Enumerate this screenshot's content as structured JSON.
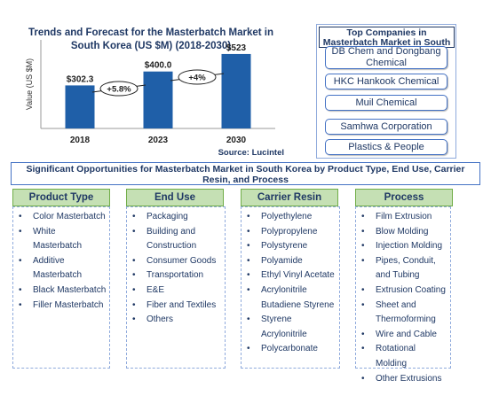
{
  "chart_data": {
    "type": "bar",
    "title": "Trends and Forecast for the Masterbatch Market in South Korea (US $M) (2018-2030)",
    "ylabel": "Value (US $M)",
    "xlabel": "",
    "categories": [
      "2018",
      "2023",
      "2030"
    ],
    "values": [
      302.3,
      400.0,
      523
    ],
    "value_labels": [
      "$302.3",
      "$400.0",
      "$523"
    ],
    "ylim": [
      0,
      560
    ],
    "growth_labels": [
      "+5.8%",
      "+4%"
    ],
    "source": "Source: Lucintel",
    "grid": false,
    "bar_color": "#1f5fa8"
  },
  "companies": {
    "title": "Top Companies in Masterbatch Market in South Korea",
    "items": [
      {
        "label": "DB Chem and Dongbang Chemical"
      },
      {
        "label": "HKC Hankook Chemical"
      },
      {
        "label": "Muil Chemical"
      },
      {
        "label": "Samhwa Corporation"
      },
      {
        "label": "Plastics & People"
      }
    ]
  },
  "opportunities": {
    "title": "Significant Opportunities for Masterbatch Market in South Korea by Product Type, End Use, Carrier Resin, and Process",
    "columns": [
      {
        "title": "Product Type",
        "items": [
          "Color Masterbatch",
          "White Masterbatch",
          "Additive",
          "Masterbatch",
          "Black Masterbatch",
          "Filler Masterbatch"
        ]
      },
      {
        "title": "End Use",
        "items": [
          "Packaging",
          "Building and",
          "Construction",
          "Consumer Goods",
          "Transportation",
          "E&E",
          "Fiber and Textiles",
          "Others"
        ]
      },
      {
        "title": "Carrier Resin",
        "items": [
          "Polyethylene",
          "Polypropylene",
          "Polystyrene",
          "Polyamide",
          "Ethyl Vinyl Acetate",
          "Acrylonitrile",
          "Butadiene Styrene",
          "Styrene",
          "Acrylonitrile",
          "Polycarbonate"
        ]
      },
      {
        "title": "Process",
        "items": [
          "Film Extrusion",
          "Blow Molding",
          "Injection Molding",
          "Pipes, Conduit,",
          "and Tubing",
          "Extrusion Coating",
          "Sheet and",
          "Thermoforming",
          "Wire and Cable",
          "Rotational Molding",
          "Other Extrusions"
        ]
      }
    ]
  },
  "colors": {
    "accent": "#1f3864",
    "header_green": "#c5e0b4",
    "border_blue": "#4472c4"
  }
}
